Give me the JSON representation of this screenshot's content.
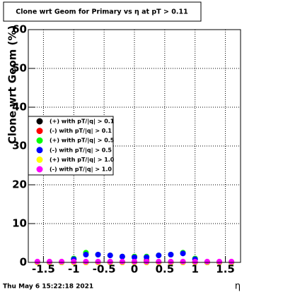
{
  "chart_data": {
    "type": "scatter",
    "title": "Clone wrt Geom for Primary vs  η at pT > 0.11",
    "y_label": "Clone wrt Geom (%)",
    "x_label": "η",
    "timestamp": "Thu May  6 15:22:18 2021",
    "x": [
      -1.6,
      -1.4,
      -1.2,
      -1.0,
      -0.8,
      -0.6,
      -0.4,
      -0.2,
      0,
      0.2,
      0.4,
      0.6,
      0.8,
      1.0,
      1.2,
      1.4,
      1.6
    ],
    "series": [
      {
        "name": "(+) with pT/|q| > 0.1",
        "color": "#000000",
        "values": [
          0,
          0,
          0,
          0,
          0,
          0,
          0,
          0,
          0,
          0,
          0,
          0,
          0,
          0,
          0,
          0,
          0
        ]
      },
      {
        "name": "(-) with pT/|q| > 0.1",
        "color": "#ff0000",
        "values": [
          0,
          0,
          0,
          0,
          0,
          0,
          0,
          0,
          1.5,
          0.5,
          0,
          0,
          0,
          0,
          0,
          0,
          0
        ]
      },
      {
        "name": "(+) with pT/|q| > 0.5",
        "color": "#00ff00",
        "values": [
          0,
          0,
          0,
          1,
          2.5,
          2,
          1.8,
          1.5,
          1.5,
          1.5,
          1.8,
          2,
          2.5,
          1,
          0,
          0,
          0
        ]
      },
      {
        "name": "(-) with pT/|q| > 0.5",
        "color": "#0000ff",
        "values": [
          0,
          0,
          0,
          0.8,
          2,
          2,
          1.8,
          1.5,
          1.3,
          1.3,
          1.8,
          2,
          2.3,
          0.8,
          0,
          0,
          0
        ]
      },
      {
        "name": "(+) with pT/|q| > 1.0",
        "color": "#ffff00",
        "values": [
          0,
          0,
          0,
          0,
          0,
          0,
          0,
          0,
          0,
          0,
          0,
          0,
          0,
          0,
          0,
          0,
          0
        ]
      },
      {
        "name": "(-) with pT/|q| > 1.0",
        "color": "#ff00ff",
        "values": [
          0.2,
          0.2,
          0.2,
          0.2,
          0.2,
          0.2,
          0.2,
          0.2,
          0.2,
          0.2,
          0.2,
          0.2,
          0.2,
          0.2,
          0.2,
          0.2,
          0.2
        ]
      }
    ],
    "xlim": [
      -1.75,
      1.75
    ],
    "ylim": [
      0,
      60
    ],
    "xticks": [
      -1.5,
      -1,
      -0.5,
      0,
      0.5,
      1,
      1.5
    ],
    "yticks": [
      0,
      10,
      20,
      30,
      40,
      50,
      60
    ],
    "grid": true
  }
}
